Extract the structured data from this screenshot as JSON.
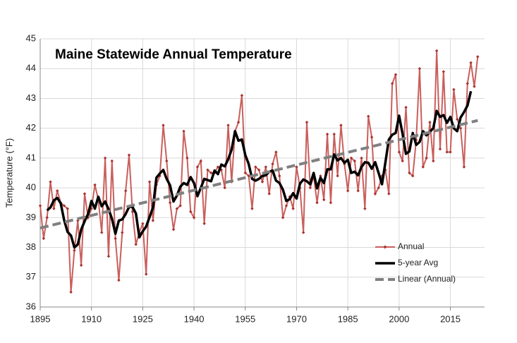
{
  "chart_data": {
    "type": "line",
    "title": "Maine Statewide Annual Temperature",
    "y_label": "Temperature (°F)",
    "x": [
      1895,
      1896,
      1897,
      1898,
      1899,
      1900,
      1901,
      1902,
      1903,
      1904,
      1905,
      1906,
      1907,
      1908,
      1909,
      1910,
      1911,
      1912,
      1913,
      1914,
      1915,
      1916,
      1917,
      1918,
      1919,
      1920,
      1921,
      1922,
      1923,
      1924,
      1925,
      1926,
      1927,
      1928,
      1929,
      1930,
      1931,
      1932,
      1933,
      1934,
      1935,
      1936,
      1937,
      1938,
      1939,
      1940,
      1941,
      1942,
      1943,
      1944,
      1945,
      1946,
      1947,
      1948,
      1949,
      1950,
      1951,
      1952,
      1953,
      1954,
      1955,
      1956,
      1957,
      1958,
      1959,
      1960,
      1961,
      1962,
      1963,
      1964,
      1965,
      1966,
      1967,
      1968,
      1969,
      1970,
      1971,
      1972,
      1973,
      1974,
      1975,
      1976,
      1977,
      1978,
      1979,
      1980,
      1981,
      1982,
      1983,
      1984,
      1985,
      1986,
      1987,
      1988,
      1989,
      1990,
      1991,
      1992,
      1993,
      1994,
      1995,
      1996,
      1997,
      1998,
      1999,
      2000,
      2001,
      2002,
      2003,
      2004,
      2005,
      2006,
      2007,
      2008,
      2009,
      2010,
      2011,
      2012,
      2013,
      2014,
      2015,
      2016,
      2017,
      2018,
      2019,
      2020,
      2021,
      2022,
      2023
    ],
    "series": [
      {
        "name": "Annual",
        "color": "#c95f5c",
        "marker_color": "#a8322f",
        "style": "markers",
        "values": [
          39.4,
          38.3,
          39.0,
          40.2,
          39.3,
          39.9,
          39.5,
          39.4,
          39.3,
          36.5,
          37.9,
          38.9,
          37.4,
          39.8,
          39.0,
          39.3,
          40.1,
          39.6,
          38.5,
          41.0,
          37.7,
          40.9,
          38.3,
          36.9,
          38.5,
          39.9,
          41.1,
          39.2,
          38.1,
          38.5,
          38.8,
          37.1,
          40.2,
          38.9,
          40.1,
          40.4,
          42.1,
          40.9,
          39.5,
          38.6,
          39.3,
          39.4,
          41.9,
          41.0,
          39.2,
          39.0,
          40.7,
          40.9,
          38.8,
          40.6,
          40.5,
          40.5,
          40.7,
          40.6,
          40.0,
          42.1,
          40.2,
          41.9,
          42.2,
          43.1,
          40.5,
          40.4,
          39.3,
          40.7,
          40.6,
          40.2,
          40.7,
          39.8,
          40.8,
          41.2,
          40.4,
          39.0,
          39.4,
          39.7,
          39.3,
          40.7,
          40.0,
          38.5,
          42.2,
          40.0,
          40.4,
          39.5,
          40.4,
          39.6,
          41.8,
          39.5,
          41.8,
          40.4,
          42.1,
          40.8,
          39.9,
          41.0,
          40.9,
          39.9,
          41.0,
          39.3,
          42.4,
          41.7,
          39.8,
          40.0,
          40.4,
          40.6,
          39.8,
          43.5,
          43.8,
          41.2,
          40.9,
          42.7,
          40.5,
          40.4,
          41.6,
          44.0,
          40.7,
          41.0,
          42.2,
          40.9,
          44.6,
          41.3,
          43.9,
          41.2,
          41.2,
          43.3,
          42.3,
          42.0,
          40.7,
          43.5,
          44.2,
          43.4,
          44.4
        ]
      },
      {
        "name": "5-year Avg",
        "color": "#000000",
        "style": "thick",
        "values": [
          null,
          null,
          39.24,
          39.34,
          39.58,
          39.66,
          39.48,
          38.92,
          38.52,
          38.4,
          38.0,
          38.1,
          38.6,
          38.88,
          39.12,
          39.56,
          39.3,
          39.7,
          39.38,
          39.54,
          39.28,
          38.96,
          38.46,
          38.9,
          38.94,
          39.12,
          39.36,
          39.36,
          39.14,
          38.34,
          38.54,
          38.7,
          39.02,
          39.34,
          40.34,
          40.48,
          40.6,
          40.3,
          40.08,
          39.54,
          39.74,
          40.04,
          40.16,
          40.1,
          40.36,
          40.16,
          39.72,
          40.0,
          40.3,
          40.26,
          40.22,
          40.58,
          40.46,
          40.78,
          40.72,
          40.96,
          41.28,
          41.9,
          41.58,
          41.62,
          41.1,
          40.8,
          40.3,
          40.24,
          40.3,
          40.4,
          40.42,
          40.54,
          40.58,
          40.24,
          40.16,
          39.94,
          39.56,
          39.62,
          39.82,
          39.64,
          40.14,
          40.28,
          40.22,
          40.12,
          40.5,
          39.98,
          40.34,
          40.16,
          40.62,
          40.62,
          41.12,
          40.92,
          41.0,
          40.84,
          40.94,
          40.5,
          40.54,
          40.42,
          40.7,
          40.86,
          40.84,
          40.64,
          40.86,
          40.5,
          40.12,
          40.86,
          41.62,
          41.78,
          41.84,
          42.42,
          41.82,
          41.14,
          41.22,
          41.84,
          41.44,
          41.54,
          41.9,
          41.76,
          41.88,
          42.0,
          42.58,
          42.38,
          42.44,
          42.18,
          42.38,
          42.0,
          41.9,
          42.36,
          42.54,
          42.76,
          43.24,
          null,
          null
        ]
      },
      {
        "name": "Linear (Annual)",
        "color": "#808080",
        "style": "dashed",
        "x": [
          1895,
          2023
        ],
        "values": [
          38.65,
          42.26
        ]
      }
    ],
    "xlim": [
      1895,
      2025
    ],
    "xticks": [
      1895,
      1910,
      1925,
      1940,
      1955,
      1970,
      1985,
      2000,
      2015
    ],
    "ylim": [
      36,
      45
    ],
    "yticks": [
      36,
      37,
      38,
      39,
      40,
      41,
      42,
      43,
      44,
      45
    ],
    "grid": true,
    "legend": "lower right"
  }
}
